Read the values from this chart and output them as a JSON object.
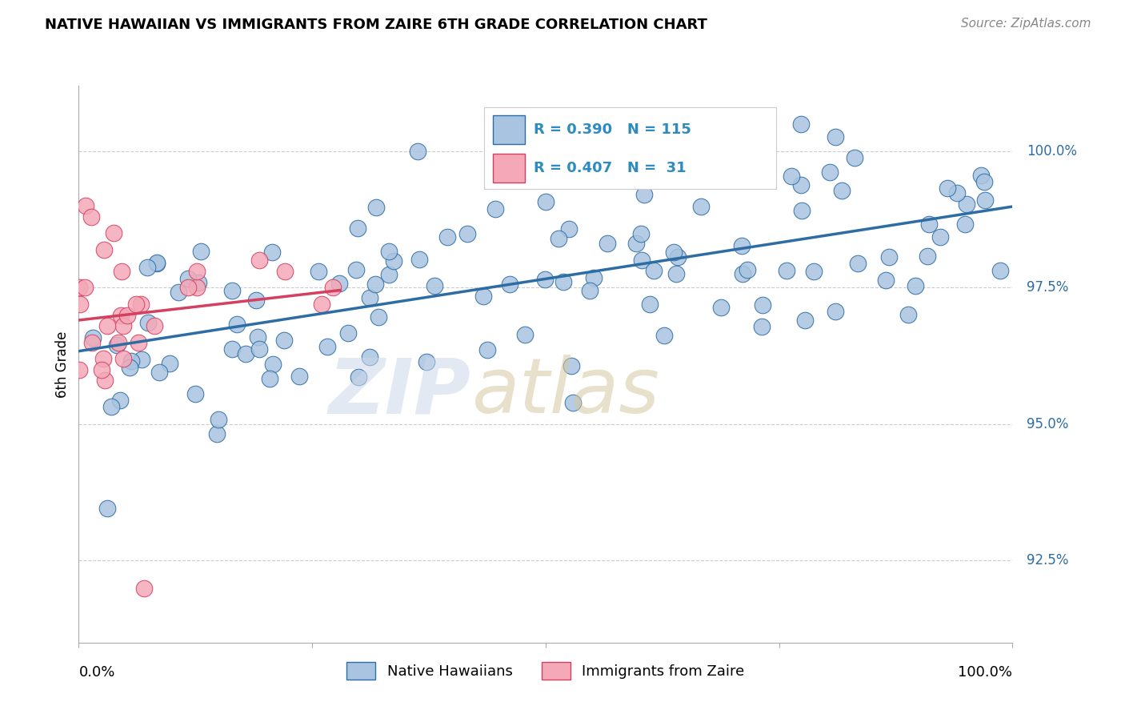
{
  "title": "NATIVE HAWAIIAN VS IMMIGRANTS FROM ZAIRE 6TH GRADE CORRELATION CHART",
  "source": "Source: ZipAtlas.com",
  "ylabel": "6th Grade",
  "ytick_values": [
    92.5,
    95.0,
    97.5,
    100.0
  ],
  "xrange": [
    0,
    100
  ],
  "yrange": [
    91.0,
    101.2
  ],
  "blue_R": 0.39,
  "blue_N": 115,
  "pink_R": 0.407,
  "pink_N": 31,
  "blue_color": "#a8c4e0",
  "blue_line_color": "#2e6da4",
  "pink_color": "#f4a8b8",
  "pink_line_color": "#d44060",
  "legend_R_color": "#2e8bc0",
  "legend_label_blue": "Native Hawaiians",
  "legend_label_pink": "Immigrants from Zaire"
}
